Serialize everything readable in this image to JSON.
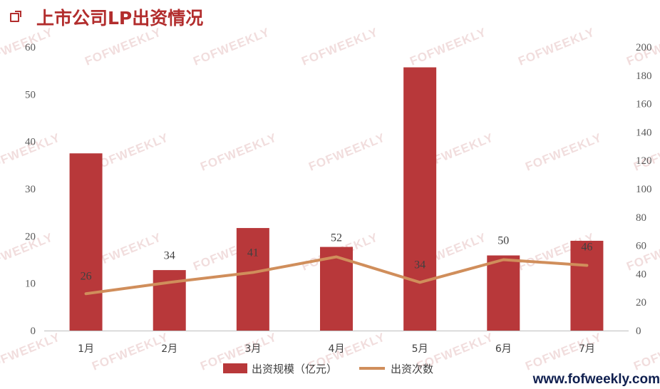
{
  "title": "上市公司LP出资情况",
  "website": "www.fofweekly.com",
  "watermark": "FOFWEEKLY",
  "chart_data": {
    "type": "bar+line",
    "categories": [
      "1月",
      "2月",
      "3月",
      "4月",
      "5月",
      "6月",
      "7月"
    ],
    "series": [
      {
        "name": "出资规模（亿元）",
        "type": "bar",
        "axis": "left",
        "color": "#B8383A",
        "values": [
          37.5,
          12.8,
          21.7,
          17.7,
          55.7,
          15.9,
          19.0
        ]
      },
      {
        "name": "出资次数",
        "type": "line",
        "axis": "right",
        "color": "#D08E5B",
        "values": [
          26,
          34,
          41,
          52,
          34,
          50,
          46
        ],
        "labels": [
          "26",
          "34",
          "41",
          "52",
          "34",
          "50",
          "46"
        ]
      }
    ],
    "y_left": {
      "ylim": [
        0,
        60
      ],
      "ticks": [
        "0",
        "10",
        "20",
        "30",
        "40",
        "50",
        "60"
      ]
    },
    "y_right": {
      "ylim": [
        0,
        200
      ],
      "ticks": [
        "0",
        "20",
        "40",
        "60",
        "80",
        "100",
        "120",
        "140",
        "160",
        "180",
        "200"
      ]
    },
    "legend_position": "bottom",
    "grid": false
  }
}
